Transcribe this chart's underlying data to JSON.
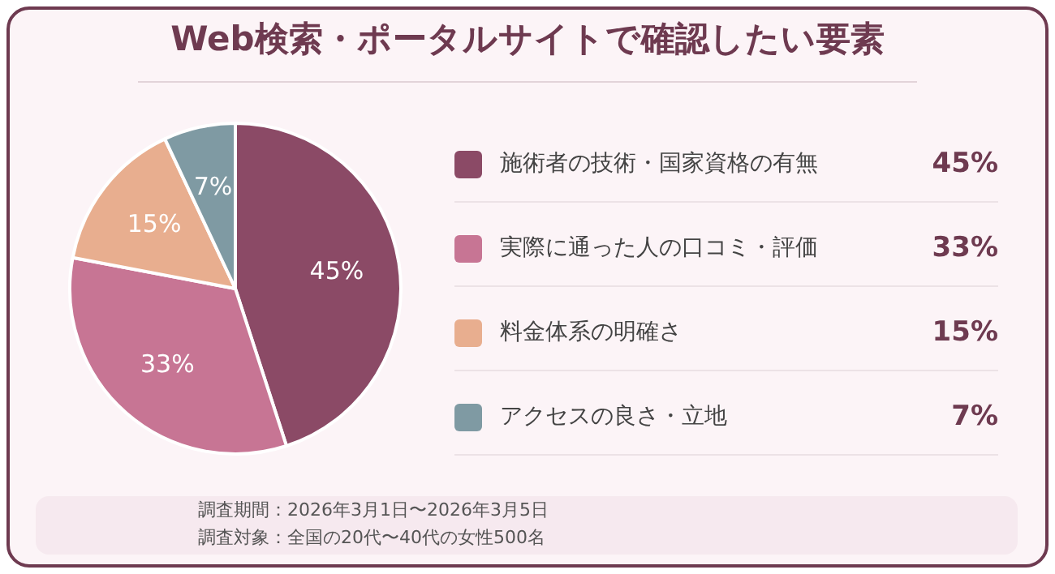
{
  "chart_data": {
    "type": "pie",
    "title": "Web検索・ポータルサイトで確認したい要素",
    "categories": [
      "施術者の技術・国家資格の有無",
      "実際に通った人の口コミ・評価",
      "料金体系の明確さ",
      "アクセスの良さ・立地"
    ],
    "values": [
      45,
      33,
      15,
      7
    ],
    "value_labels": [
      "45%",
      "33%",
      "15%",
      "7%"
    ],
    "colors": [
      "#8b4a66",
      "#c77594",
      "#e8ae8f",
      "#7f9aa3"
    ],
    "legend": "right",
    "annotations": [
      "調査期間：2026年3月1日〜2026年3月5日",
      "調査対象：全国の20代〜40代の女性500名"
    ]
  }
}
